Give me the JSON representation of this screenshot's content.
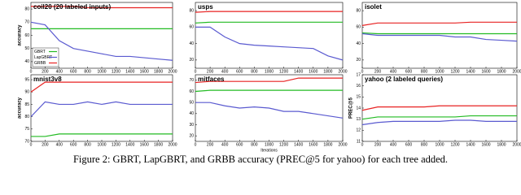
{
  "chart_data": [
    {
      "type": "line",
      "title": "coil20 (20 labeled inputs)",
      "ylabel": "accuracy",
      "legend": "lower left",
      "x": [
        0,
        200,
        400,
        600,
        800,
        1000,
        1200,
        1400,
        1600,
        1800,
        2000
      ],
      "xlim": [
        0,
        2000
      ],
      "xticks": [
        0,
        200,
        400,
        600,
        800,
        1000,
        1200,
        1400,
        1600,
        1800,
        2000
      ],
      "ylim": [
        35,
        85
      ],
      "yticks": [
        40,
        50,
        60,
        70,
        80
      ],
      "series": [
        {
          "name": "GBRT",
          "color": "#22bb22",
          "values": [
            65,
            65,
            65,
            65,
            65,
            65,
            65,
            65,
            65,
            65,
            65
          ]
        },
        {
          "name": "LapGBRT",
          "color": "#5a5ad0",
          "values": [
            70,
            68,
            56,
            50,
            48,
            46,
            44,
            44,
            43,
            42,
            41
          ]
        },
        {
          "name": "GRBB",
          "color": "#e82222",
          "values": [
            82,
            82,
            82,
            82,
            81,
            81,
            81,
            81,
            81,
            81,
            81
          ]
        }
      ]
    },
    {
      "type": "line",
      "title": "usps",
      "x": [
        0,
        200,
        400,
        600,
        800,
        1000,
        1200,
        1400,
        1600,
        1800,
        2000
      ],
      "xlim": [
        0,
        2000
      ],
      "xticks": [
        0,
        200,
        400,
        600,
        800,
        1000,
        1200,
        1400,
        1600,
        1800,
        2000
      ],
      "ylim": [
        10,
        90
      ],
      "yticks": [
        20,
        40,
        60,
        80
      ],
      "series": [
        {
          "color": "#22bb22",
          "values": [
            65,
            66,
            66,
            66,
            66,
            66,
            66,
            66,
            66,
            66,
            66
          ]
        },
        {
          "color": "#5a5ad0",
          "values": [
            60,
            60,
            48,
            40,
            38,
            37,
            36,
            35,
            34,
            25,
            20
          ]
        },
        {
          "color": "#e82222",
          "values": [
            78,
            79,
            79,
            79,
            79,
            79,
            79,
            79,
            79,
            79,
            79
          ]
        }
      ]
    },
    {
      "type": "line",
      "title": "isolet",
      "x": [
        0,
        200,
        400,
        600,
        800,
        1000,
        1200,
        1400,
        1600,
        1800,
        2000
      ],
      "xlim": [
        0,
        2000
      ],
      "xticks": [
        0,
        200,
        400,
        600,
        800,
        1000,
        1200,
        1400,
        1600,
        1800,
        2000
      ],
      "ylim": [
        10,
        90
      ],
      "yticks": [
        20,
        40,
        60,
        80
      ],
      "series": [
        {
          "color": "#22bb22",
          "values": [
            53,
            52,
            52,
            52,
            52,
            52,
            52,
            52,
            52,
            52,
            52
          ]
        },
        {
          "color": "#5a5ad0",
          "values": [
            52,
            50,
            50,
            50,
            50,
            50,
            48,
            48,
            45,
            44,
            43
          ]
        },
        {
          "color": "#e82222",
          "values": [
            62,
            65,
            65,
            65,
            65,
            65,
            65,
            66,
            66,
            66,
            66
          ]
        }
      ]
    },
    {
      "type": "line",
      "title": "mnist3v8",
      "ylabel": "accuracy",
      "x": [
        0,
        200,
        400,
        600,
        800,
        1000,
        1200,
        1400,
        1600,
        1800,
        2000
      ],
      "xlim": [
        0,
        2000
      ],
      "xticks": [
        0,
        200,
        400,
        600,
        800,
        1000,
        1200,
        1400,
        1600,
        1800,
        2000
      ],
      "ylim": [
        70,
        97
      ],
      "yticks": [
        70,
        75,
        80,
        85,
        90,
        95
      ],
      "series": [
        {
          "color": "#22bb22",
          "values": [
            72,
            72,
            73,
            73,
            73,
            73,
            73,
            73,
            73,
            73,
            73
          ]
        },
        {
          "color": "#5a5ad0",
          "values": [
            80,
            86,
            85,
            85,
            86,
            85,
            86,
            85,
            85,
            85,
            85
          ]
        },
        {
          "color": "#e82222",
          "values": [
            90,
            94,
            94,
            94,
            94,
            94,
            94,
            94,
            94,
            94,
            94
          ]
        }
      ]
    },
    {
      "type": "line",
      "title": "mitfaces",
      "xlabel": "Iterations",
      "x": [
        0,
        200,
        400,
        600,
        800,
        1000,
        1200,
        1400,
        1600,
        1800,
        2000
      ],
      "xlim": [
        0,
        2000
      ],
      "xticks": [
        0,
        200,
        400,
        600,
        800,
        1000,
        1200,
        1400,
        1600,
        1800,
        2000
      ],
      "ylim": [
        15,
        75
      ],
      "yticks": [
        20,
        30,
        40,
        50,
        60,
        70
      ],
      "series": [
        {
          "color": "#22bb22",
          "values": [
            60,
            61,
            61,
            61,
            61,
            61,
            61,
            61,
            61,
            61,
            61
          ]
        },
        {
          "color": "#5a5ad0",
          "values": [
            50,
            50,
            47,
            45,
            46,
            45,
            42,
            42,
            40,
            38,
            36
          ]
        },
        {
          "color": "#e82222",
          "values": [
            68,
            69,
            69,
            69,
            69,
            69,
            69,
            72,
            72,
            72,
            72
          ]
        }
      ]
    },
    {
      "type": "line",
      "title": "yahoo (2 labeled queries)",
      "ylabel": "PREC@5",
      "x": [
        0,
        200,
        400,
        600,
        800,
        1000,
        1200,
        1400,
        1600,
        1800,
        2000
      ],
      "xlim": [
        0,
        2000
      ],
      "xticks": [
        0,
        200,
        400,
        600,
        800,
        1000,
        1200,
        1400,
        1600,
        1800,
        2000
      ],
      "ylim": [
        11,
        17
      ],
      "yticks": [
        11,
        12,
        13,
        14,
        15,
        16,
        17
      ],
      "series": [
        {
          "color": "#22bb22",
          "values": [
            13.0,
            13.2,
            13.2,
            13.2,
            13.2,
            13.2,
            13.2,
            13.3,
            13.3,
            13.3,
            13.3
          ]
        },
        {
          "color": "#5a5ad0",
          "values": [
            12.5,
            12.7,
            12.8,
            12.8,
            12.8,
            12.8,
            12.9,
            12.9,
            12.8,
            12.8,
            12.8
          ]
        },
        {
          "color": "#e82222",
          "values": [
            13.8,
            14.1,
            14.1,
            14.1,
            14.1,
            14.2,
            14.2,
            14.2,
            14.2,
            14.2,
            14.2
          ]
        }
      ]
    }
  ],
  "caption": "Figure 2: GBRT, LapGBRT, and GRBB accuracy (PREC@5 for yahoo) for each tree added."
}
